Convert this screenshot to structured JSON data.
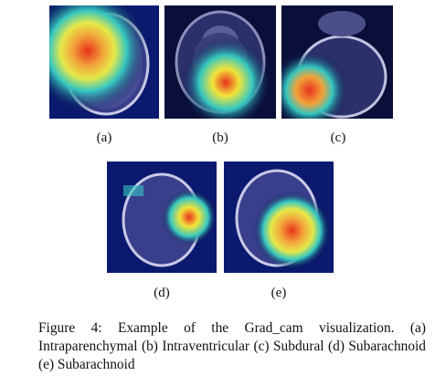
{
  "figure": {
    "panels": [
      {
        "label": "(a)"
      },
      {
        "label": "(b)"
      },
      {
        "label": "(c)"
      },
      {
        "label": "(d)"
      },
      {
        "label": "(e)"
      }
    ],
    "caption": "Figure 4: Example of the Grad_cam visualization. (a) Intraparenchymal (b) Intraventricular (c) Subdural (d) Subarachnoid (e) Subarachnoid"
  },
  "colors": {
    "background": "#0b0f4a",
    "heat_hot": "#e8321e",
    "heat_warm": "#f2e43a",
    "heat_cool": "#35c7c0"
  }
}
